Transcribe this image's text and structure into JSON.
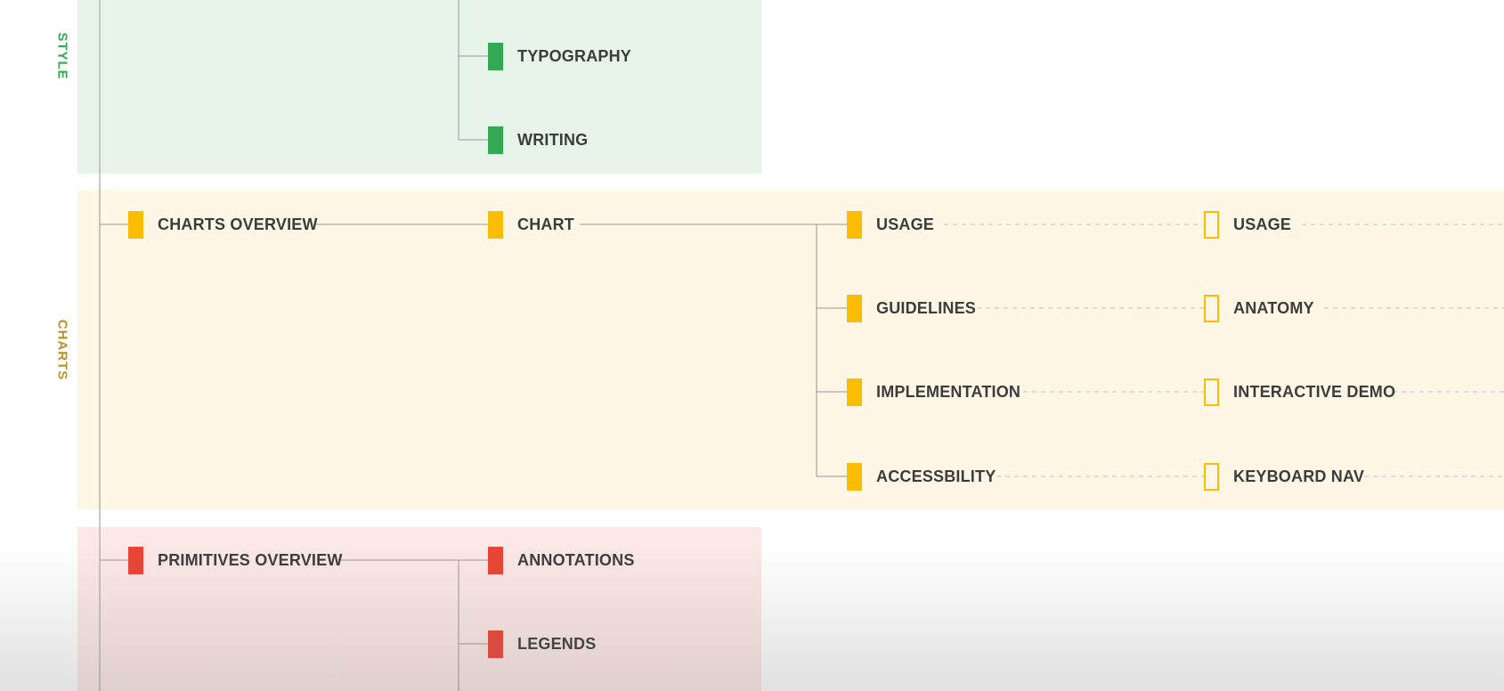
{
  "colors": {
    "style_bg": "#e6f4ea",
    "style_marker": "#34a853",
    "style_label": "#34a853",
    "charts_bg": "#fef7e6",
    "charts_marker": "#fbbc04",
    "charts_label": "#b6922c",
    "primitives_bg": "#fce8e6",
    "primitives_marker": "#ea4335",
    "connector": "#aaaaaa",
    "dashed": "#cccccc"
  },
  "sections": {
    "style": {
      "label": "STYLE"
    },
    "charts": {
      "label": "CHARTS"
    },
    "primitives": {
      "label": ""
    }
  },
  "nodes": {
    "typography": "TYPOGRAPHY",
    "writing": "WRITING",
    "charts_overview": "CHARTS OVERVIEW",
    "chart": "CHART",
    "usage": "USAGE",
    "guidelines": "GUIDELINES",
    "implementation": "IMPLEMENTATION",
    "accessibility": "ACCESSBILITY",
    "usage_sub": "USAGE",
    "anatomy": "ANATOMY",
    "interactive_demo": "INTERACTIVE DEMO",
    "keyboard_nav": "KEYBOARD NAV",
    "primitives_overview": "PRIMITIVES OVERVIEW",
    "annotations": "ANNOTATIONS",
    "legends": "LEGENDS"
  }
}
